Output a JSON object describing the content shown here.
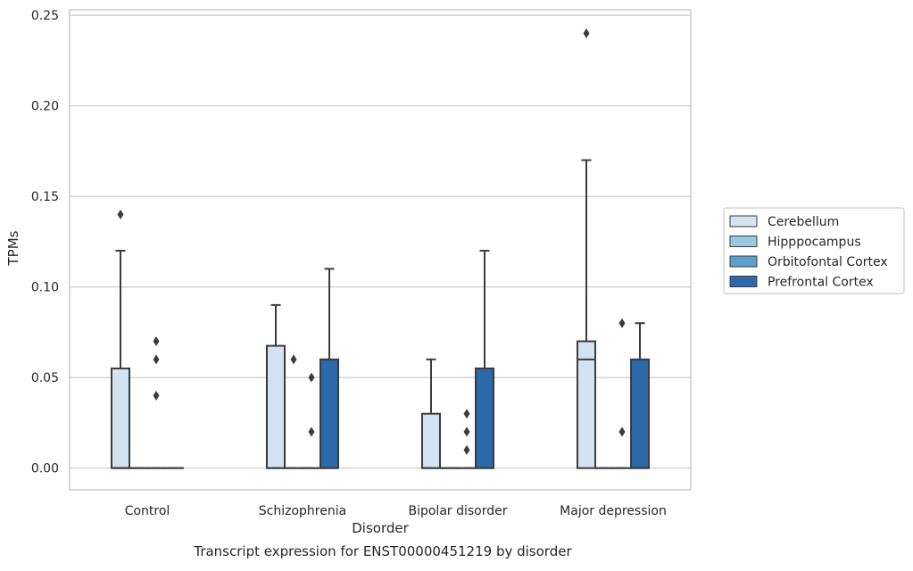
{
  "chart_data": {
    "type": "box",
    "title": "",
    "caption": "Transcript expression for ENST00000451219 by disorder",
    "xlabel": "Disorder",
    "ylabel": "TPMs",
    "ylim": [
      -0.012,
      0.253
    ],
    "yticks": [
      0.0,
      0.05,
      0.1,
      0.15,
      0.2,
      0.25
    ],
    "ytick_labels": [
      "0.00",
      "0.05",
      "0.10",
      "0.15",
      "0.20",
      "0.25"
    ],
    "grid": "horizontal",
    "legend_position": "right",
    "categories": [
      "Control",
      "Schizophrenia",
      "Bipolar disorder",
      "Major depression"
    ],
    "series": [
      {
        "name": "Cerebellum",
        "color": "#d3e3f2",
        "boxes": [
          {
            "q1": 0.0,
            "median": 0.0,
            "q3": 0.055,
            "whisker_low": 0.0,
            "whisker_high": 0.12,
            "outliers": [
              0.14
            ]
          },
          {
            "q1": 0.0,
            "median": 0.0,
            "q3": 0.0675,
            "whisker_low": 0.0,
            "whisker_high": 0.09,
            "outliers": []
          },
          {
            "q1": 0.0,
            "median": 0.0,
            "q3": 0.03,
            "whisker_low": 0.0,
            "whisker_high": 0.06,
            "outliers": []
          },
          {
            "q1": 0.0,
            "median": 0.06,
            "q3": 0.07,
            "whisker_low": 0.0,
            "whisker_high": 0.17,
            "outliers": [
              0.24
            ]
          }
        ]
      },
      {
        "name": "Hipppocampus",
        "color": "#9ac8e0",
        "boxes": [
          {
            "q1": 0.0,
            "median": 0.0,
            "q3": 0.0,
            "whisker_low": 0.0,
            "whisker_high": 0.0,
            "outliers": []
          },
          {
            "q1": 0.0,
            "median": 0.0,
            "q3": 0.0,
            "whisker_low": 0.0,
            "whisker_high": 0.0,
            "outliers": [
              0.06
            ]
          },
          {
            "q1": 0.0,
            "median": 0.0,
            "q3": 0.0,
            "whisker_low": 0.0,
            "whisker_high": 0.0,
            "outliers": []
          },
          {
            "q1": 0.0,
            "median": 0.0,
            "q3": 0.0,
            "whisker_low": 0.0,
            "whisker_high": 0.0,
            "outliers": []
          }
        ]
      },
      {
        "name": "Orbitofontal Cortex",
        "color": "#5da0cb",
        "boxes": [
          {
            "q1": 0.0,
            "median": 0.0,
            "q3": 0.0,
            "whisker_low": 0.0,
            "whisker_high": 0.0,
            "outliers": [
              0.04,
              0.06,
              0.07
            ]
          },
          {
            "q1": 0.0,
            "median": 0.0,
            "q3": 0.0,
            "whisker_low": 0.0,
            "whisker_high": 0.0,
            "outliers": [
              0.02,
              0.05
            ]
          },
          {
            "q1": 0.0,
            "median": 0.0,
            "q3": 0.0,
            "whisker_low": 0.0,
            "whisker_high": 0.0,
            "outliers": [
              0.01,
              0.02,
              0.03
            ]
          },
          {
            "q1": 0.0,
            "median": 0.0,
            "q3": 0.0,
            "whisker_low": 0.0,
            "whisker_high": 0.0,
            "outliers": [
              0.02,
              0.08
            ]
          }
        ]
      },
      {
        "name": "Prefrontal Cortex",
        "color": "#2a6aab",
        "boxes": [
          {
            "q1": 0.0,
            "median": 0.0,
            "q3": 0.0,
            "whisker_low": 0.0,
            "whisker_high": 0.0,
            "outliers": []
          },
          {
            "q1": 0.0,
            "median": 0.0,
            "q3": 0.06,
            "whisker_low": 0.0,
            "whisker_high": 0.11,
            "outliers": []
          },
          {
            "q1": 0.0,
            "median": 0.0,
            "q3": 0.055,
            "whisker_low": 0.0,
            "whisker_high": 0.12,
            "outliers": []
          },
          {
            "q1": 0.0,
            "median": 0.0,
            "q3": 0.06,
            "whisker_low": 0.0,
            "whisker_high": 0.08,
            "outliers": []
          }
        ]
      }
    ]
  }
}
